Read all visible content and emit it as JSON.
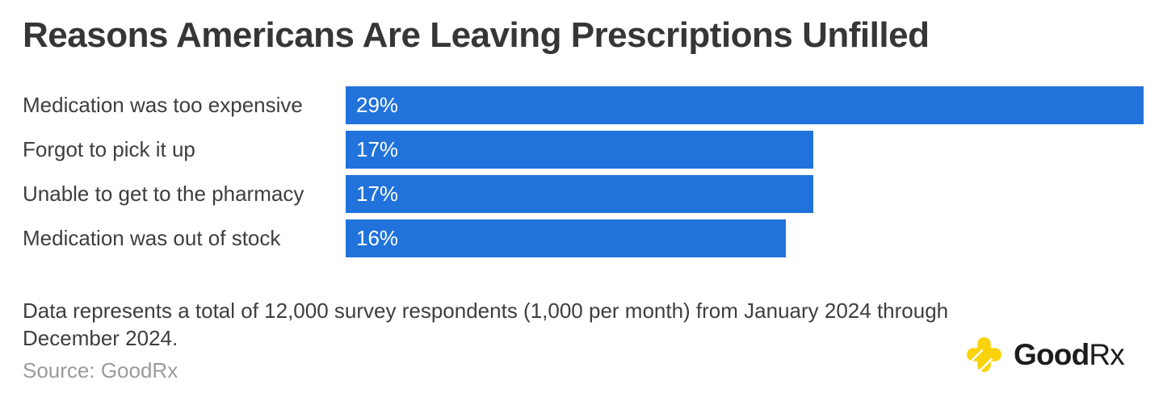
{
  "chart_data": {
    "type": "bar",
    "orientation": "horizontal",
    "title": "Reasons Americans Are Leaving Prescriptions Unfilled",
    "categories": [
      "Medication was too expensive",
      "Forgot to pick it up",
      "Unable to get to the pharmacy",
      "Medication was out of stock"
    ],
    "values": [
      29,
      17,
      17,
      16
    ],
    "value_labels": [
      "29%",
      "17%",
      "17%",
      "16%"
    ],
    "xlabel": "",
    "ylabel": "",
    "xlim": [
      0,
      29.7
    ],
    "grid": false,
    "legend": false,
    "bar_color": "#2173DB",
    "value_label_color": "#FFFFFF",
    "category_label_color": "#3E3E3E"
  },
  "footnote": "Data represents a total of 12,000 survey respondents (1,000 per month) from January 2024 through December 2024.",
  "source": "Source: GoodRx",
  "logo": {
    "brand_bold": "Good",
    "brand_light": "Rx",
    "cross_color": "#FAD30D",
    "text_color": "#1C1C1C"
  }
}
